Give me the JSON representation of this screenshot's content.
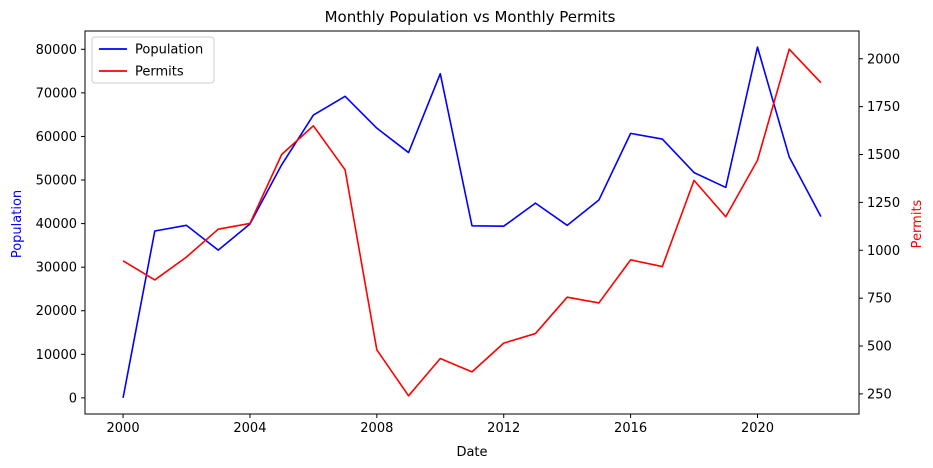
{
  "chart_data": {
    "type": "line",
    "title": "Monthly Population vs Monthly Permits",
    "xlabel": "Date",
    "ylabel_left": "Population",
    "ylabel_right": "Permits",
    "x": [
      2000,
      2001,
      2002,
      2003,
      2004,
      2005,
      2006,
      2007,
      2008,
      2009,
      2010,
      2011,
      2012,
      2013,
      2014,
      2015,
      2016,
      2017,
      2018,
      2019,
      2020,
      2021,
      2022
    ],
    "xlim": [
      1998.8,
      2023.2
    ],
    "xticks": [
      2000,
      2004,
      2008,
      2012,
      2016,
      2020
    ],
    "xtick_labels": [
      "2000",
      "2004",
      "2008",
      "2012",
      "2016",
      "2020"
    ],
    "ylim_left": [
      -3700,
      84200
    ],
    "yticks_left": [
      0,
      10000,
      20000,
      30000,
      40000,
      50000,
      60000,
      70000,
      80000
    ],
    "ytick_labels_left": [
      "0",
      "10000",
      "20000",
      "30000",
      "40000",
      "50000",
      "60000",
      "70000",
      "80000"
    ],
    "ylim_right": [
      145,
      2145
    ],
    "yticks_right": [
      250,
      500,
      750,
      1000,
      1250,
      1500,
      1750,
      2000
    ],
    "ytick_labels_right": [
      "250",
      "500",
      "750",
      "1000",
      "1250",
      "1500",
      "1750",
      "2000"
    ],
    "series": [
      {
        "name": "Population",
        "axis": "left",
        "color": "#0000ff",
        "values": [
          0,
          38300,
          39600,
          33900,
          39900,
          53500,
          64900,
          69200,
          61900,
          56300,
          74400,
          39500,
          39400,
          44700,
          39600,
          45400,
          60700,
          59400,
          51700,
          48300,
          80500,
          55300,
          41600
        ]
      },
      {
        "name": "Permits",
        "axis": "right",
        "color": "#ff0000",
        "values": [
          945,
          845,
          965,
          1110,
          1140,
          1500,
          1650,
          1420,
          480,
          240,
          435,
          365,
          515,
          565,
          755,
          725,
          950,
          915,
          1365,
          1175,
          1470,
          2050,
          1875
        ]
      }
    ],
    "legend": {
      "position": "top-left",
      "items": [
        "Population",
        "Permits"
      ]
    },
    "grid": false
  }
}
